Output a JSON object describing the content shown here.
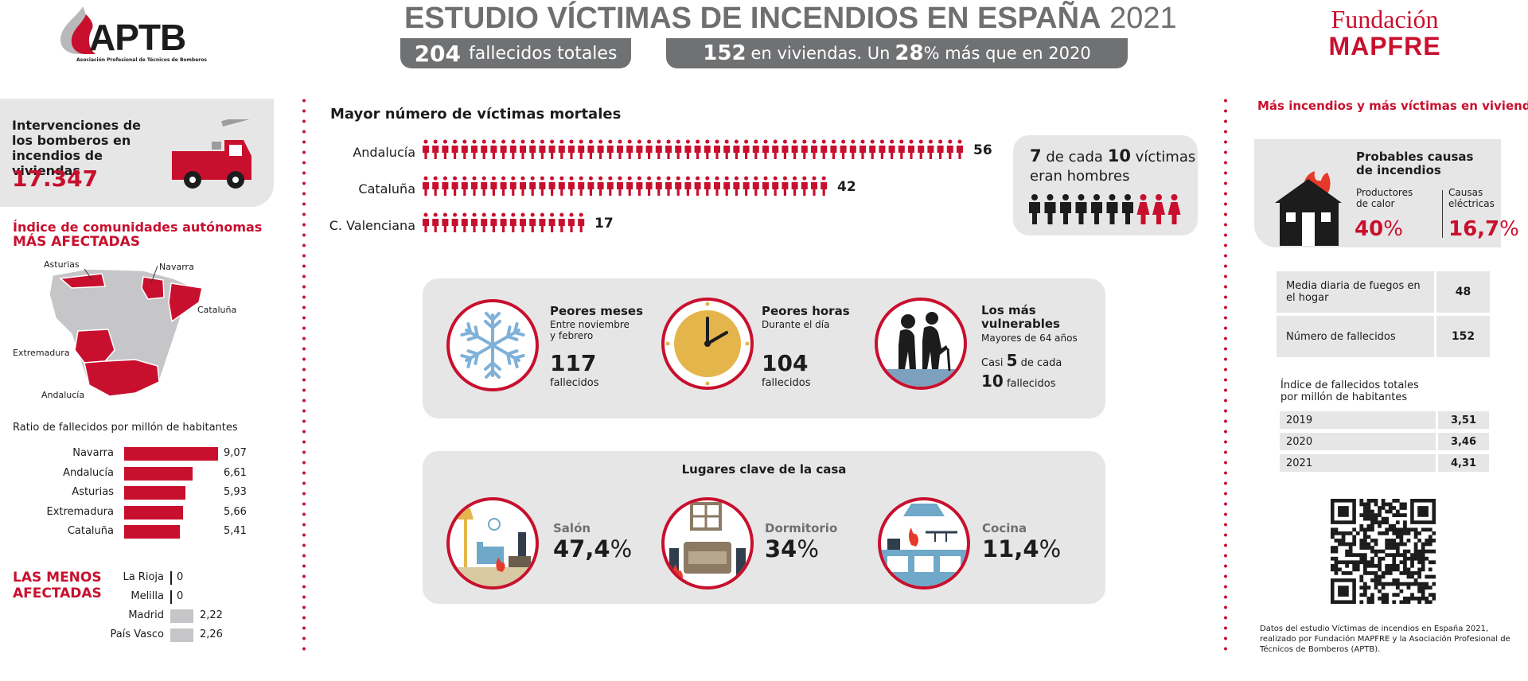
{
  "header": {
    "title_bold": "ESTUDIO VÍCTIMAS DE INCENDIOS EN ESPAÑA",
    "title_year": "2021",
    "stat1_num": "204",
    "stat1_txt": "fallecidos totales",
    "stat2_num": "152",
    "stat2_mid": "en viviendas. Un",
    "stat2_pct": "28",
    "stat2_tail": "% más que en 2020"
  },
  "logos": {
    "aptb": "APTB",
    "aptb_sub": "Asociación Profesional de Técnicos de Bomberos",
    "mapfre_top": "Fundación",
    "mapfre_bottom": "MAPFRE"
  },
  "left": {
    "interventions_label": "Intervenciones de los bomberos en incendios de viviendas",
    "interventions_value": "17.347",
    "index_title_1": "Índice de comunidades autónomas",
    "index_title_2": "MÁS AFECTADAS",
    "map_labels": [
      "Asturias",
      "Navarra",
      "Cataluña",
      "Extremadura",
      "Andalucía"
    ],
    "ratio_title": "Ratio de fallecidos por millón de habitantes",
    "top": [
      {
        "name": "Navarra",
        "value": "9,07",
        "v": 9.07
      },
      {
        "name": "Andalucía",
        "value": "6,61",
        "v": 6.61
      },
      {
        "name": "Asturias",
        "value": "5,93",
        "v": 5.93
      },
      {
        "name": "Extremadura",
        "value": "5,66",
        "v": 5.66
      },
      {
        "name": "Cataluña",
        "value": "5,41",
        "v": 5.41
      }
    ],
    "least_title_1": "LAS MENOS",
    "least_title_2": "AFECTADAS",
    "least": [
      {
        "name": "La Rioja",
        "value": "0",
        "v": 0
      },
      {
        "name": "Melilla",
        "value": "0",
        "v": 0
      },
      {
        "name": "Madrid",
        "value": "2,22",
        "v": 2.22
      },
      {
        "name": "País Vasco",
        "value": "2,26",
        "v": 2.26
      }
    ]
  },
  "center": {
    "victims_title": "Mayor número de víctimas mortales",
    "regions": [
      {
        "name": "Andalucía",
        "value": "56",
        "n": 56
      },
      {
        "name": "Cataluña",
        "value": "42",
        "n": 42
      },
      {
        "name": "C. Valenciana",
        "value": "17",
        "n": 17
      }
    ],
    "men_num": "7",
    "men_mid": "de cada",
    "men_num2": "10",
    "men_tail": "víctimas",
    "men_line2": "eran hombres",
    "men_count": 7,
    "women_count": 3,
    "cards": {
      "months_title": "Peores meses",
      "months_sub": "Entre noviembre y febrero",
      "months_num": "117",
      "months_unit": "fallecidos",
      "hours_title": "Peores horas",
      "hours_sub": "Durante el día",
      "hours_num": "104",
      "hours_unit": "fallecidos",
      "vuln_title": "Los más vulnerables",
      "vuln_sub": "Mayores de 64 años",
      "vuln_pre": "Casi",
      "vuln_num": "5",
      "vuln_mid": "de cada",
      "vuln_num2": "10",
      "vuln_unit": "fallecidos"
    },
    "places_title": "Lugares clave de la casa",
    "places": [
      {
        "name": "Salón",
        "pct": "47,4",
        "unit": "%"
      },
      {
        "name": "Dormitorio",
        "pct": "34",
        "unit": "%"
      },
      {
        "name": "Cocina",
        "pct": "11,4",
        "unit": "%"
      }
    ]
  },
  "right": {
    "title": "Más incendios y más víctimas en viviendas",
    "causes_title": "Probables causas de incendios",
    "cause1_label": "Productores de calor",
    "cause1_value": "40",
    "cause1_unit": "%",
    "cause2_label": "Causas eléctricas",
    "cause2_value": "16,7",
    "cause2_unit": "%",
    "stats": [
      {
        "label": "Media diaria de fuegos en el hogar",
        "value": "48"
      },
      {
        "label": "Número de fallecidos",
        "value": "152"
      }
    ],
    "index_title": "Índice de fallecidos totales por millón de habitantes",
    "index": [
      {
        "year": "2019",
        "value": "3,51"
      },
      {
        "year": "2020",
        "value": "3,46"
      },
      {
        "year": "2021",
        "value": "4,31"
      }
    ],
    "footnote": "Datos del estudio Víctimas de incendios en España 2021, realizado por Fundación MAPFRE y la Asociación Profesional de Técnicos de Bomberos (APTB)."
  }
}
